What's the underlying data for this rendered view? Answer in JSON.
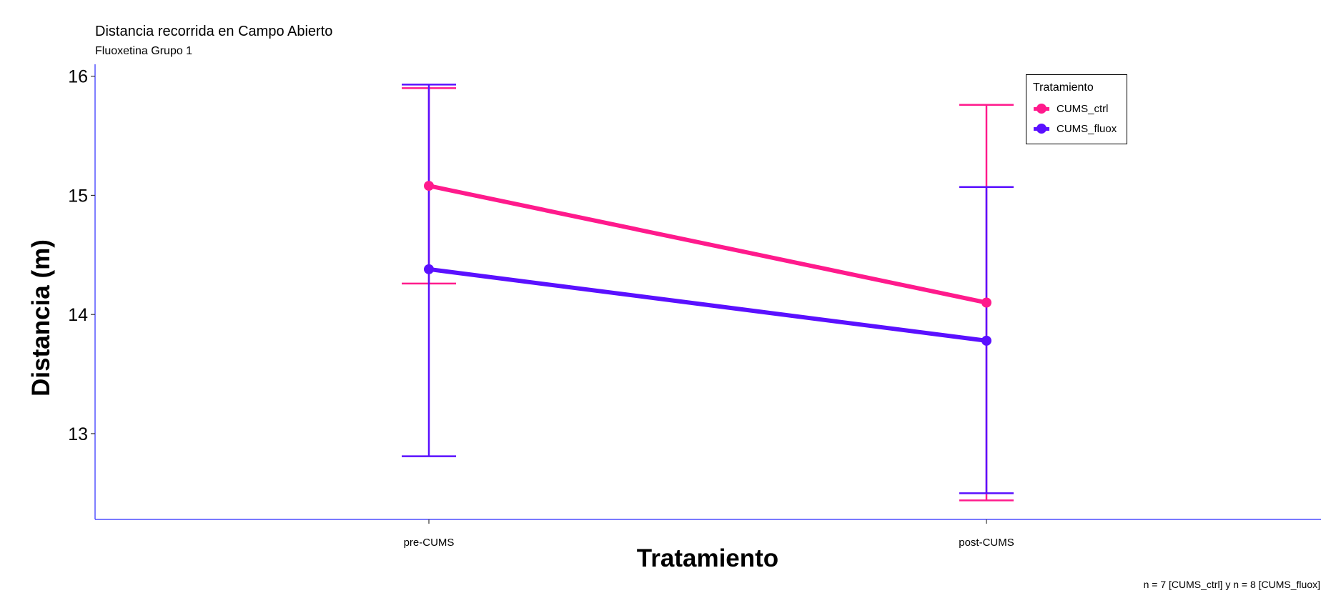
{
  "title": "Distancia recorrida en Campo Abierto",
  "subtitle": "Fluoxetina Grupo 1",
  "caption": "n = 7  [CUMS_ctrl] y n = 8 [CUMS_fluox]",
  "chart_data": {
    "type": "line",
    "xlabel": "Tratamiento",
    "ylabel": "Distancia (m)",
    "categories": [
      "pre-CUMS",
      "post-CUMS"
    ],
    "ylim": [
      12.28,
      16.1
    ],
    "yticks": [
      13,
      14,
      15,
      16
    ],
    "grid": false,
    "legend": {
      "title": "Tratamiento",
      "position": "top-right"
    },
    "series": [
      {
        "name": "CUMS_ctrl",
        "color": "#ff1a8c",
        "values": [
          15.08,
          14.1
        ],
        "error_low": [
          14.26,
          12.44
        ],
        "error_high": [
          15.9,
          15.76
        ]
      },
      {
        "name": "CUMS_fluox",
        "color": "#5a10ff",
        "values": [
          14.38,
          13.78
        ],
        "error_low": [
          12.81,
          12.5
        ],
        "error_high": [
          15.93,
          15.07
        ]
      }
    ]
  }
}
